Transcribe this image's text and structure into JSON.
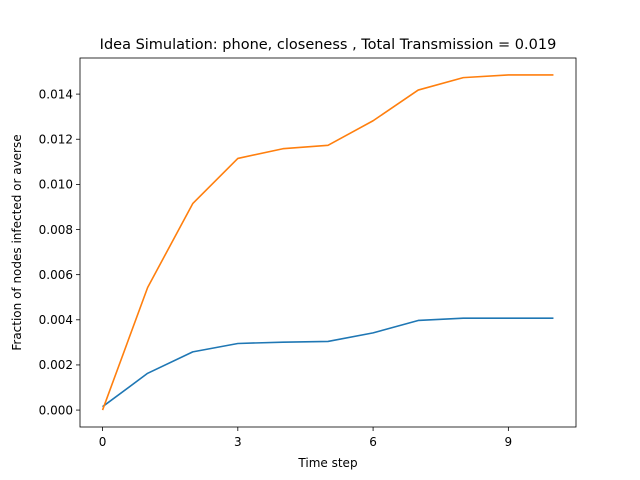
{
  "chart_data": {
    "type": "line",
    "title": "Idea Simulation: phone, closeness , Total Transmission = 0.019",
    "xlabel": "Time step",
    "ylabel": "Fraction of nodes infected or averse",
    "xlim": [
      -0.5,
      10.5
    ],
    "ylim": [
      -0.00075,
      0.0156
    ],
    "xticks": [
      0,
      3,
      6,
      9
    ],
    "yticks": [
      0.0,
      0.002,
      0.004,
      0.006,
      0.008,
      0.01,
      0.012,
      0.014
    ],
    "ytick_labels": [
      "0.000",
      "0.002",
      "0.004",
      "0.006",
      "0.008",
      "0.010",
      "0.012",
      "0.014"
    ],
    "grid": false,
    "x": [
      0,
      1,
      2,
      3,
      4,
      5,
      6,
      7,
      8,
      9,
      10
    ],
    "series": [
      {
        "color": "#1f77b4",
        "values": [
          0.00015,
          0.00163,
          0.00258,
          0.00295,
          0.00301,
          0.00304,
          0.00342,
          0.00397,
          0.00407,
          0.00407,
          0.00407
        ]
      },
      {
        "color": "#ff7f0e",
        "values": [
          0.0,
          0.00543,
          0.00915,
          0.01115,
          0.01158,
          0.01173,
          0.01282,
          0.01418,
          0.01473,
          0.01485,
          0.01485
        ]
      }
    ]
  }
}
